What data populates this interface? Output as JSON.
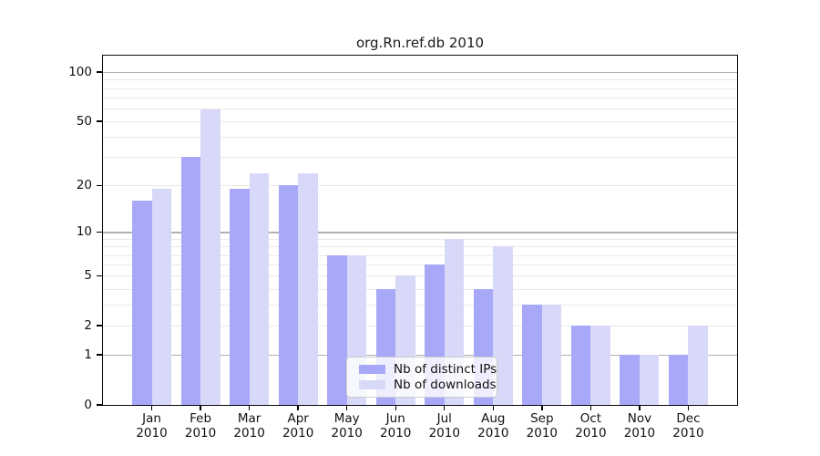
{
  "chart_data": {
    "type": "bar",
    "title": "org.Rn.ref.db 2010",
    "categories": [
      "Jan",
      "Feb",
      "Mar",
      "Apr",
      "May",
      "Jun",
      "Jul",
      "Aug",
      "Sep",
      "Oct",
      "Nov",
      "Dec"
    ],
    "category_year": "2010",
    "series": [
      {
        "name": "Nb of distinct IPs",
        "color": "#a8a8f8",
        "values": [
          16,
          30,
          19,
          20,
          7,
          4,
          6,
          4,
          3,
          2,
          1,
          1
        ]
      },
      {
        "name": "Nb of downloads",
        "color": "#d8d8f8",
        "values": [
          19,
          59,
          24,
          24,
          7,
          5,
          9,
          8,
          3,
          2,
          1,
          2
        ]
      }
    ],
    "xlabel": "",
    "ylabel": "",
    "yscale": "log1p",
    "ylim": [
      0,
      126
    ],
    "yticks": [
      {
        "value": 100,
        "label": "100"
      },
      {
        "value": 50,
        "label": "50"
      },
      {
        "value": 20,
        "label": "20"
      },
      {
        "value": 10,
        "label": "10"
      },
      {
        "value": 5,
        "label": "5"
      },
      {
        "value": 2,
        "label": "2"
      },
      {
        "value": 1,
        "label": "1"
      },
      {
        "value": 0,
        "label": "0"
      }
    ],
    "grid": true,
    "legend_position": "lower center",
    "legend_entries": [
      "Nb of distinct IPs",
      "Nb of downloads"
    ],
    "colors": {
      "distinct_ips": "#a8a8f8",
      "downloads": "#d8d8f8",
      "grid_major": "#b0b0b0",
      "grid_minor": "#e9e9e9",
      "spine": "#0a0a0a"
    }
  }
}
